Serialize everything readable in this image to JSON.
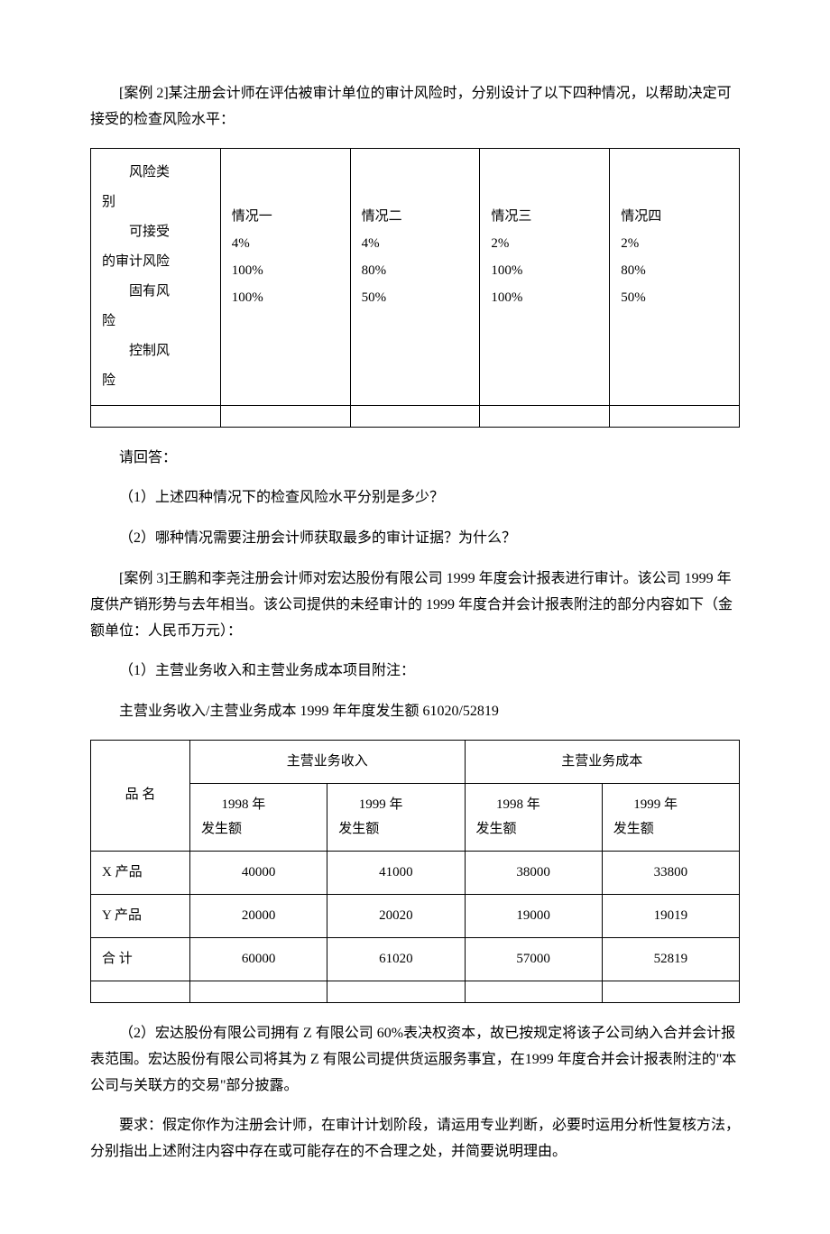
{
  "case2": {
    "intro": "[案例 2]某注册会计师在评估被审计单位的审计风险时，分别设计了以下四种情况，以帮助决定可接受的检查风险水平：",
    "table": {
      "labels": {
        "risk_type": "风险类",
        "risk_type_suffix": "别",
        "acceptable": "可接受",
        "acceptable_suffix": "的审计风险",
        "inherent": "固有风",
        "inherent_suffix": "险",
        "control": "控制风",
        "control_suffix": "险"
      },
      "columns": [
        "情况一",
        "情况二",
        "情况三",
        "情况四"
      ],
      "acceptable_values": [
        "4%",
        "4%",
        "2%",
        "2%"
      ],
      "inherent_values": [
        "100%",
        "80%",
        "100%",
        "80%"
      ],
      "control_values": [
        "100%",
        "50%",
        "100%",
        "50%"
      ]
    },
    "questions": {
      "prompt": "请回答：",
      "q1": "（1）上述四种情况下的检查风险水平分别是多少？",
      "q2": "（2）哪种情况需要注册会计师获取最多的审计证据？为什么？"
    }
  },
  "case3": {
    "intro": "[案例 3]王鹏和李尧注册会计师对宏达股份有限公司 1999 年度会计报表进行审计。该公司 1999 年度供产销形势与去年相当。该公司提供的未经审计的 1999 年度合并会计报表附注的部分内容如下（金额单位：人民币万元）：",
    "note1": "（1）主营业务收入和主营业务成本项目附注：",
    "summary": "主营业务收入/主营业务成本 1999 年年度发生额 61020/52819",
    "table": {
      "header_product": "品 名",
      "header_revenue": "主营业务收入",
      "header_cost": "主营业务成本",
      "sub_1998": "1998 年",
      "sub_1999": "1999 年",
      "sub_amount": "发生额",
      "rows": [
        {
          "name": "X 产品",
          "rev1998": "40000",
          "rev1999": "41000",
          "cost1998": "38000",
          "cost1999": "33800"
        },
        {
          "name": "Y 产品",
          "rev1998": "20000",
          "rev1999": "20020",
          "cost1998": "19000",
          "cost1999": "19019"
        },
        {
          "name": "合 计",
          "rev1998": "60000",
          "rev1999": "61020",
          "cost1998": "57000",
          "cost1999": "52819"
        }
      ]
    },
    "note2": "（2）宏达股份有限公司拥有 Z 有限公司 60%表决权资本，故已按规定将该子公司纳入合并会计报表范围。宏达股份有限公司将其为 Z 有限公司提供货运服务事宜，在1999 年度合并会计报表附注的\"本公司与关联方的交易\"部分披露。",
    "requirement": "要求：假定你作为注册会计师，在审计计划阶段，请运用专业判断，必要时运用分析性复核方法，分别指出上述附注内容中存在或可能存在的不合理之处，并简要说明理由。"
  }
}
